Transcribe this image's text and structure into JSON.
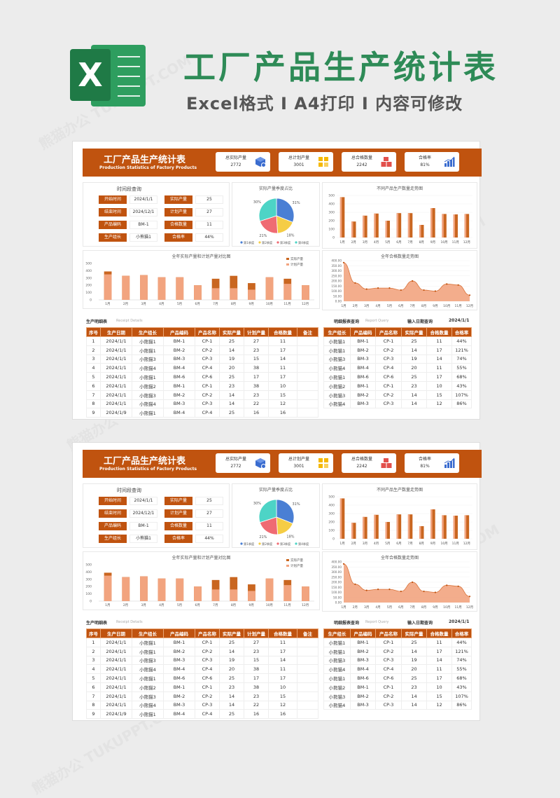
{
  "banner": {
    "title": "工厂产品生产统计表",
    "subtitle": "Excel格式 I A4打印 I 内容可修改",
    "logo_letter": "X"
  },
  "watermark": "熊猫办公 TUKUPPT.COM",
  "colors": {
    "accent": "#c0530f",
    "bar_light": "#f2a47f",
    "bar_dark": "#c96620",
    "title_green": "#2e8b57",
    "pie": [
      "#4a7fd4",
      "#f5cd45",
      "#ef6b73",
      "#4dd4c6"
    ]
  },
  "sheet": {
    "title": "工厂产品生产统计表",
    "title_en": "Production Statistics of Factory Products",
    "kpis": [
      {
        "label": "总实际产量",
        "value": "2772",
        "icon": "cube-icon"
      },
      {
        "label": "总计划产量",
        "value": "3001",
        "icon": "grid-icon"
      },
      {
        "label": "总合格数量",
        "value": "2242",
        "icon": "cubes-icon"
      },
      {
        "label": "合格率",
        "value": "81%",
        "icon": "bar-chart-icon"
      }
    ],
    "query": {
      "title": "时间段查询",
      "rows": [
        {
          "label": "开始时间",
          "value": "2024/1/1",
          "label2": "实际产量",
          "value2": "25"
        },
        {
          "label": "结束时间",
          "value": "2024/12/1",
          "label2": "计划产量",
          "value2": "27"
        },
        {
          "label": "产品编码",
          "value": "BM-1",
          "label2": "合格数量",
          "value2": "11"
        },
        {
          "label": "生产组长",
          "value": "小熊猫1",
          "label2": "合格率",
          "value2": "44%"
        }
      ]
    },
    "pie_title": "实际产量季度占比",
    "trend_title": "不同产品生产数量走势图",
    "compare_title": "全年实际产量和计划产量对比图",
    "quality_title": "全年合格数量走势图",
    "detail_title": "生产明细表",
    "detail_en": "Receipt Details",
    "report_title": "明细报表查询",
    "report_en": "Report Query",
    "date_label": "输入日期查询",
    "date_value": "2024/1/1",
    "detail_headers": [
      "序号",
      "生产日期",
      "生产组长",
      "产品编码",
      "产品名称",
      "实际产量",
      "计划产量",
      "合格数量",
      "备注"
    ],
    "detail_rows": [
      [
        "1",
        "2024/1/1",
        "小熊猫1",
        "BM-1",
        "CP-1",
        "25",
        "27",
        "11",
        ""
      ],
      [
        "2",
        "2024/1/1",
        "小熊猫1",
        "BM-2",
        "CP-2",
        "14",
        "23",
        "17",
        ""
      ],
      [
        "3",
        "2024/1/1",
        "小熊猫3",
        "BM-3",
        "CP-3",
        "19",
        "15",
        "14",
        ""
      ],
      [
        "4",
        "2024/1/1",
        "小熊猫4",
        "BM-4",
        "CP-4",
        "20",
        "38",
        "11",
        ""
      ],
      [
        "5",
        "2024/1/1",
        "小熊猫1",
        "BM-6",
        "CP-6",
        "25",
        "17",
        "17",
        ""
      ],
      [
        "6",
        "2024/1/1",
        "小熊猫2",
        "BM-1",
        "CP-1",
        "23",
        "38",
        "10",
        ""
      ],
      [
        "7",
        "2024/1/1",
        "小熊猫3",
        "BM-2",
        "CP-2",
        "14",
        "23",
        "15",
        ""
      ],
      [
        "8",
        "2024/1/1",
        "小熊猫4",
        "BM-3",
        "CP-3",
        "14",
        "22",
        "12",
        ""
      ],
      [
        "9",
        "2024/1/9",
        "小熊猫1",
        "BM-4",
        "CP-4",
        "25",
        "16",
        "16",
        ""
      ]
    ],
    "report_headers": [
      "生产组长",
      "产品编码",
      "产品名称",
      "实际产量",
      "合格数量",
      "合格率"
    ],
    "report_rows": [
      [
        "小熊猫1",
        "BM-1",
        "CP-1",
        "25",
        "11",
        "44%"
      ],
      [
        "小熊猫1",
        "BM-2",
        "CP-2",
        "14",
        "17",
        "121%"
      ],
      [
        "小熊猫3",
        "BM-3",
        "CP-3",
        "19",
        "14",
        "74%"
      ],
      [
        "小熊猫4",
        "BM-4",
        "CP-4",
        "20",
        "11",
        "55%"
      ],
      [
        "小熊猫1",
        "BM-6",
        "CP-6",
        "25",
        "17",
        "68%"
      ],
      [
        "小熊猫2",
        "BM-1",
        "CP-1",
        "23",
        "10",
        "43%"
      ],
      [
        "小熊猫3",
        "BM-2",
        "CP-2",
        "14",
        "15",
        "107%"
      ],
      [
        "小熊猫4",
        "BM-3",
        "CP-3",
        "14",
        "12",
        "86%"
      ]
    ]
  },
  "chart_data": [
    {
      "type": "pie",
      "title": "实际产量季度占比",
      "categories": [
        "第1季度",
        "第2季度",
        "第3季度",
        "第4季度"
      ],
      "values": [
        31,
        18,
        21,
        30
      ],
      "value_labels": [
        "31%",
        "18%",
        "21%",
        "30%"
      ]
    },
    {
      "type": "bar",
      "title": "不同产品生产数量走势图",
      "categories": [
        "1月",
        "2月",
        "3月",
        "4月",
        "5月",
        "6月",
        "7月",
        "8月",
        "9月",
        "10月",
        "11月",
        "12月"
      ],
      "series": [
        {
          "values": [
            480,
            190,
            260,
            285,
            200,
            290,
            290,
            150,
            350,
            280,
            275,
            280
          ]
        }
      ],
      "ylim": [
        0,
        500
      ],
      "ticks": [
        "500",
        "400",
        "300",
        "200",
        "100",
        "0"
      ]
    },
    {
      "type": "bar",
      "title": "全年实际产量和计划产量对比图",
      "categories": [
        "1月",
        "2月",
        "3月",
        "4月",
        "5月",
        "6月",
        "7月",
        "8月",
        "9月",
        "10月",
        "11月",
        "12月"
      ],
      "series": [
        {
          "name": "实际产量",
          "values": [
            390,
            330,
            340,
            310,
            310,
            200,
            290,
            330,
            230,
            310,
            290,
            200
          ]
        },
        {
          "name": "计划产量",
          "values": [
            350,
            330,
            340,
            310,
            310,
            200,
            160,
            160,
            140,
            310,
            220,
            200
          ]
        }
      ],
      "ylim": [
        0,
        500
      ],
      "ticks": [
        "500",
        "400",
        "300",
        "200",
        "100",
        "0"
      ]
    },
    {
      "type": "area",
      "title": "全年合格数量走势图",
      "categories": [
        "1月",
        "2月",
        "3月",
        "4月",
        "5月",
        "6月",
        "7月",
        "8月",
        "9月",
        "10月",
        "11月",
        "12月"
      ],
      "values": [
        380,
        180,
        120,
        130,
        130,
        110,
        200,
        110,
        100,
        170,
        160,
        60
      ],
      "ylim": [
        0,
        400
      ],
      "ticks": [
        "400.00",
        "350.00",
        "300.00",
        "250.00",
        "200.00",
        "150.00",
        "100.00",
        "50.00",
        "0.00"
      ]
    }
  ]
}
